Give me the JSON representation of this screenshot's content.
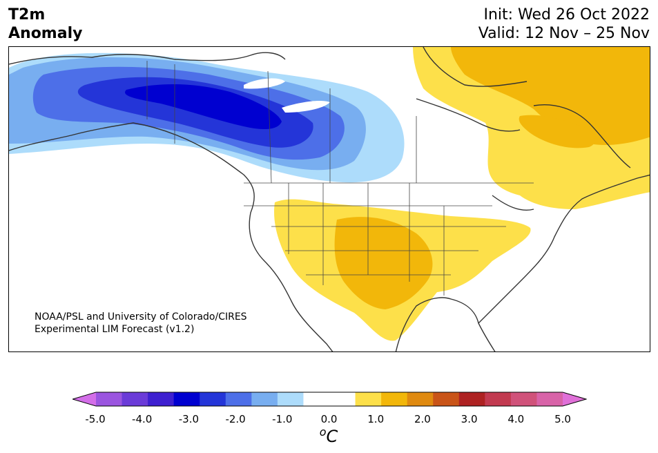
{
  "title": {
    "left_line1": "T2m",
    "left_line2": "Anomaly",
    "init": "Init: Wed 26 Oct 2022",
    "valid": "Valid: 12 Nov – 25 Nov"
  },
  "credit": {
    "line1": "NOAA/PSL and University of Colorado/CIRES",
    "line2": "Experimental LIM Forecast (v1.2)"
  },
  "colorbar": {
    "ticks": [
      "-5.0",
      "-4.0",
      "-3.0",
      "-2.0",
      "-1.0",
      "0.0",
      "1.0",
      "2.0",
      "3.0",
      "4.0",
      "5.0"
    ],
    "unit_base": "C",
    "unit_sup": "o",
    "colors": [
      "#d36ee8",
      "#9b55e0",
      "#6b3bd8",
      "#3e20d0",
      "#0000d0",
      "#2435d8",
      "#4d6fe8",
      "#78aef0",
      "#addcfb",
      "#ffffff",
      "#ffffff",
      "#fde04a",
      "#f2b70a",
      "#e08a10",
      "#c95418",
      "#ae2222",
      "#c23a50",
      "#d0527a",
      "#d863a8",
      "#e070d8"
    ]
  },
  "map": {
    "region": "North America",
    "variable": "2m temperature anomaly"
  }
}
